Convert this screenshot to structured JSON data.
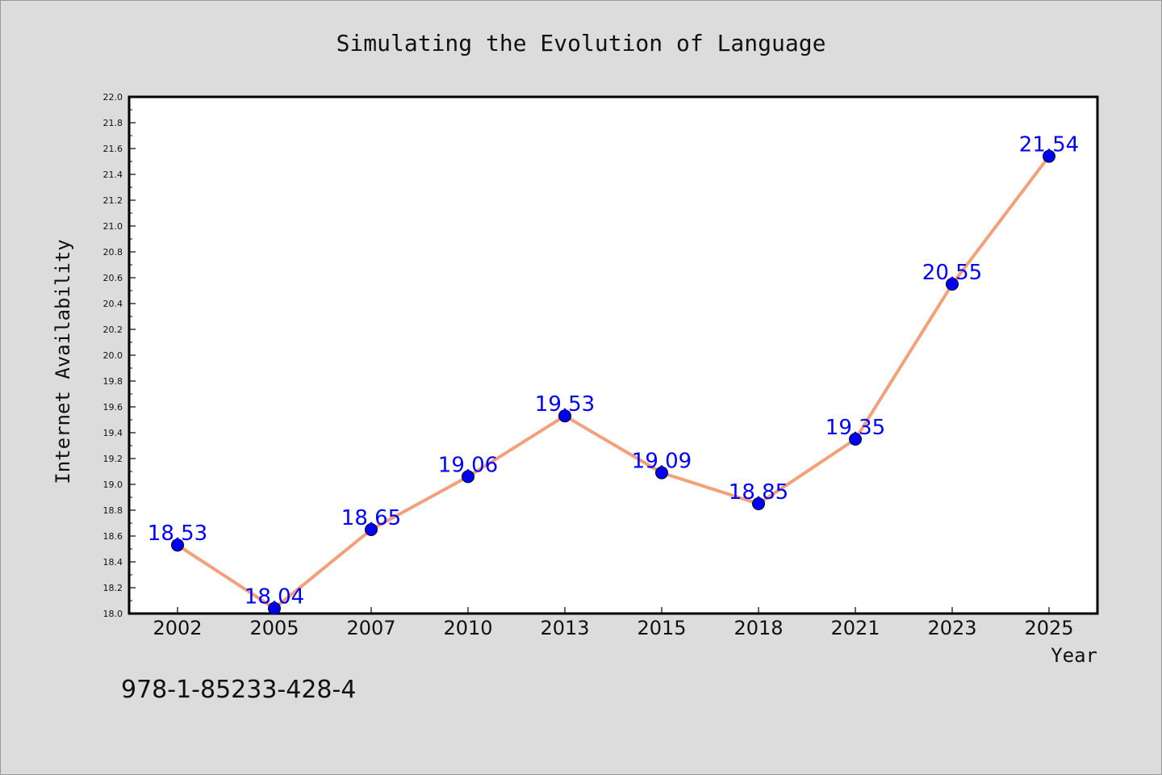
{
  "chart_data": {
    "type": "line",
    "title": "Simulating the Evolution of Language",
    "xlabel": "Year",
    "ylabel": "Internet Availability",
    "categories": [
      "2002",
      "2005",
      "2007",
      "2010",
      "2013",
      "2015",
      "2018",
      "2021",
      "2023",
      "2025"
    ],
    "series": [
      {
        "values": [
          18.53,
          18.04,
          18.65,
          19.06,
          19.53,
          19.09,
          18.85,
          19.35,
          20.55,
          21.54
        ],
        "labels": [
          "18.53",
          "18.04",
          "18.65",
          "19.06",
          "19.53",
          "19.09",
          "18.85",
          "19.35",
          "20.55",
          "21.54"
        ]
      }
    ],
    "ylim": [
      18.0,
      22.0
    ],
    "yticks": [
      "18.0",
      "18.2",
      "18.4",
      "18.6",
      "18.8",
      "19.0",
      "19.2",
      "19.4",
      "19.6",
      "19.8",
      "20.0",
      "20.2",
      "20.4",
      "20.6",
      "20.8",
      "21.0",
      "21.2",
      "21.4",
      "21.6",
      "21.8",
      "22.0"
    ],
    "grid": false,
    "line_color": "#f4a07a",
    "marker_color": "#0000ee",
    "label_color": "#0000ff",
    "background": "#dcdcdc",
    "plot_background": "#ffffff"
  },
  "footer": {
    "text": "978-1-85233-428-4"
  }
}
